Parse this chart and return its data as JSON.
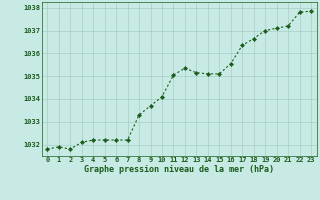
{
  "x": [
    0,
    1,
    2,
    3,
    4,
    5,
    6,
    7,
    8,
    9,
    10,
    11,
    12,
    13,
    14,
    15,
    16,
    17,
    18,
    19,
    20,
    21,
    22,
    23
  ],
  "y": [
    1031.8,
    1031.9,
    1031.8,
    1032.1,
    1032.2,
    1032.2,
    1032.2,
    1032.2,
    1033.3,
    1033.7,
    1034.1,
    1035.05,
    1035.35,
    1035.15,
    1035.1,
    1035.1,
    1035.55,
    1036.35,
    1036.65,
    1037.0,
    1037.1,
    1037.2,
    1037.8,
    1037.85
  ],
  "line_color": "#1a5c1a",
  "marker_color": "#1a5c1a",
  "bg_color": "#c8eae4",
  "grid_color": "#a8ccc6",
  "xlabel": "Graphe pression niveau de la mer (hPa)",
  "xlabel_color": "#1a5c1a",
  "tick_color": "#1a5c1a",
  "ylim": [
    1031.5,
    1038.25
  ],
  "xlim": [
    -0.5,
    23.5
  ],
  "yticks": [
    1032,
    1033,
    1034,
    1035,
    1036,
    1037,
    1038
  ],
  "xticks": [
    0,
    1,
    2,
    3,
    4,
    5,
    6,
    7,
    8,
    9,
    10,
    11,
    12,
    13,
    14,
    15,
    16,
    17,
    18,
    19,
    20,
    21,
    22,
    23
  ],
  "xtick_labels": [
    "0",
    "1",
    "2",
    "3",
    "4",
    "5",
    "6",
    "7",
    "8",
    "9",
    "10",
    "11",
    "12",
    "13",
    "14",
    "15",
    "16",
    "17",
    "18",
    "19",
    "20",
    "21",
    "22",
    "23"
  ],
  "ytick_labels": [
    "1032",
    "1033",
    "1034",
    "1035",
    "1036",
    "1037",
    "1038"
  ]
}
